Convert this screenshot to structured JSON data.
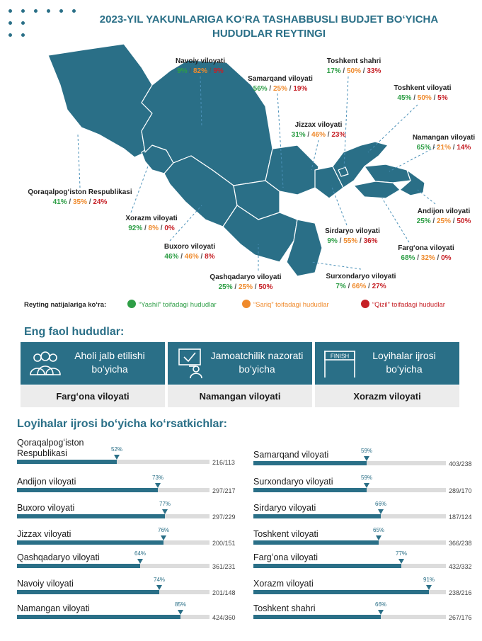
{
  "title": {
    "line1": "2023-YIL YAKUNLARIGA KOʻRA TASHABBUSLI BUDJET BOʻYICHA",
    "line2": "HUDUDLAR REYTINGI"
  },
  "colors": {
    "primary": "#2a6f87",
    "green": "#2e9e46",
    "orange": "#ef8a2c",
    "red": "#c62026"
  },
  "map_regions": [
    {
      "name": "Navoiy viloyati",
      "green": "9%",
      "orange": "82%",
      "red": "9%"
    },
    {
      "name": "Samarqand viloyati",
      "green": "56%",
      "orange": "25%",
      "red": "19%"
    },
    {
      "name": "Toshkent shahri",
      "green": "17%",
      "orange": "50%",
      "red": "33%"
    },
    {
      "name": "Toshkent viloyati",
      "green": "45%",
      "orange": "50%",
      "red": "5%"
    },
    {
      "name": "Jizzax viloyati",
      "green": "31%",
      "orange": "46%",
      "red": "23%"
    },
    {
      "name": "Namangan viloyati",
      "green": "65%",
      "orange": "21%",
      "red": "14%"
    },
    {
      "name": "Qoraqalpogʻiston Respublikasi",
      "green": "41%",
      "orange": "35%",
      "red": "24%"
    },
    {
      "name": "Andijon viloyati",
      "green": "25%",
      "orange": "25%",
      "red": "50%"
    },
    {
      "name": "Xorazm viloyati",
      "green": "92%",
      "orange": "8%",
      "red": "0%"
    },
    {
      "name": "Sirdaryo viloyati",
      "green": "9%",
      "orange": "55%",
      "red": "36%"
    },
    {
      "name": "Buxoro viloyati",
      "green": "46%",
      "orange": "46%",
      "red": "8%"
    },
    {
      "name": "Fargʻona viloyati",
      "green": "68%",
      "orange": "32%",
      "red": "0%"
    },
    {
      "name": "Qashqadaryo viloyati",
      "green": "25%",
      "orange": "25%",
      "red": "50%"
    },
    {
      "name": "Surxondaryo viloyati",
      "green": "7%",
      "orange": "66%",
      "red": "27%"
    }
  ],
  "legend": {
    "title": "Reyting natijalariga koʻra:",
    "green": "“Yashil” toifadagi hududlar",
    "orange": "“Sariq” toifadagi hududlar",
    "red": "“Qizil” toifadagi hududlar"
  },
  "active": {
    "heading": "Eng faol hududlar:",
    "cards": [
      {
        "icon": "people-group-icon",
        "line1": "Aholi jalb etilishi",
        "line2": "boʻyicha",
        "value": "Fargʻona viloyati"
      },
      {
        "icon": "public-monitoring-icon",
        "line1": "Jamoatchilik nazorati",
        "line2": "boʻyicha",
        "value": "Namangan viloyati"
      },
      {
        "icon": "finish-line-icon",
        "icon_text": "FINISH",
        "line1": "Loyihalar ijrosi",
        "line2": "boʻyicha",
        "value": "Xorazm viloyati"
      }
    ]
  },
  "progress": {
    "heading": "Loyihalar ijrosi boʻyicha koʻrsatkichlar:"
  },
  "chart_data": {
    "type": "bar",
    "title": "Loyihalar ijrosi boʻyicha koʻrsatkichlar:",
    "unit": "%",
    "ylim": [
      0,
      100
    ],
    "items": [
      {
        "label": "Qoraqalpogʻiston Respublikasi",
        "percent": 52,
        "ratio": "216/113"
      },
      {
        "label": "Andijon viloyati",
        "percent": 73,
        "ratio": "297/217"
      },
      {
        "label": "Buxoro viloyati",
        "percent": 77,
        "ratio": "297/229"
      },
      {
        "label": "Jizzax viloyati",
        "percent": 76,
        "ratio": "200/151"
      },
      {
        "label": "Qashqadaryo viloyati",
        "percent": 64,
        "ratio": "361/231"
      },
      {
        "label": "Navoiy viloyati",
        "percent": 74,
        "ratio": "201/148"
      },
      {
        "label": "Namangan viloyati",
        "percent": 85,
        "ratio": "424/360"
      },
      {
        "label": "Samarqand viloyati",
        "percent": 59,
        "ratio": "403/238"
      },
      {
        "label": "Surxondaryo viloyati",
        "percent": 59,
        "ratio": "289/170"
      },
      {
        "label": "Sirdaryo viloyati",
        "percent": 66,
        "ratio": "187/124"
      },
      {
        "label": "Toshkent viloyati",
        "percent": 65,
        "ratio": "366/238"
      },
      {
        "label": "Fargʻona viloyati",
        "percent": 77,
        "ratio": "432/332"
      },
      {
        "label": "Xorazm viloyati",
        "percent": 91,
        "ratio": "238/216"
      },
      {
        "label": "Toshkent shahri",
        "percent": 66,
        "ratio": "267/176"
      }
    ]
  }
}
